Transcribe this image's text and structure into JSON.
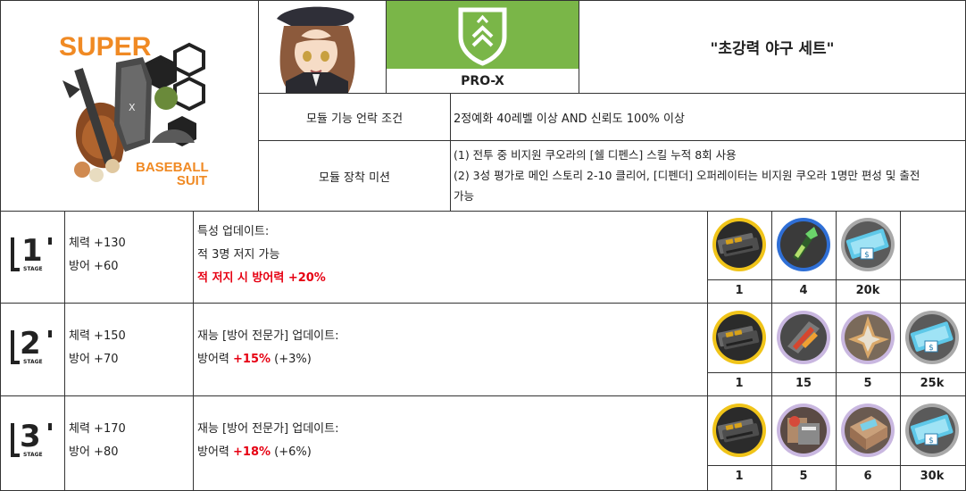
{
  "module": {
    "logo_top_text": "SUPER",
    "logo_bottom_text": "BASEBALL\nSUIT",
    "grade": "PRO-X",
    "name": "\"초강력 야구 세트\"",
    "colors": {
      "grade_bg": "#7ab648",
      "logo_orange": "#f08a24",
      "highlight": "#e60012"
    }
  },
  "unlock": {
    "label": "모듈 기능 언락 조건",
    "value": "2정예화 40레벨 이상 AND 신뢰도 100% 이상"
  },
  "mission": {
    "label": "모듈 장착 미션",
    "line1": "(1) 전투 중 비지원 쿠오라의 [쉘 디펜스] 스킬 누적 8회 사용",
    "line2": "(2) 3성 평가로 메인 스토리 2-10 클리어, [디펜더] 오퍼레이터는 비지원 쿠오라 1명만 편성 및 출전",
    "line3": "가능"
  },
  "stages": [
    {
      "stage_label": "STAGE",
      "number": "1",
      "hp": "체력 +130",
      "def": "방어 +60",
      "desc1": "특성 업데이트:",
      "desc2": "적 3명 저지 가능",
      "desc3": "적 저지 시 방어력 +20%",
      "materials": [
        {
          "icon": "module-data-block-icon",
          "qty": "1"
        },
        {
          "icon": "crystalline-component-icon",
          "qty": "4"
        },
        {
          "icon": "lmd-icon",
          "qty": "20k"
        }
      ]
    },
    {
      "stage_label": "STAGE",
      "number": "2",
      "hp": "체력 +150",
      "def": "방어 +70",
      "desc1": "재능 [방어 전문가] 업데이트:",
      "desc2_prefix": "방어력 ",
      "desc2_value": "+15%",
      "desc2_suffix": " (+3%)",
      "materials": [
        {
          "icon": "module-data-block-icon",
          "qty": "1"
        },
        {
          "icon": "incandescent-alloy-icon",
          "qty": "15"
        },
        {
          "icon": "crystal-electronic-unit-icon",
          "qty": "5"
        },
        {
          "icon": "lmd-icon",
          "qty": "25k"
        }
      ]
    },
    {
      "stage_label": "STAGE",
      "number": "3",
      "hp": "체력 +170",
      "def": "방어 +80",
      "desc1": "재능 [방어 전문가] 업데이트:",
      "desc2_prefix": "방어력 ",
      "desc2_value": "+18%",
      "desc2_suffix": " (+6%)",
      "materials": [
        {
          "icon": "module-data-block-icon",
          "qty": "1"
        },
        {
          "icon": "refined-solvent-icon",
          "qty": "5"
        },
        {
          "icon": "compound-cutting-fluid-icon",
          "qty": "6"
        },
        {
          "icon": "lmd-icon",
          "qty": "30k"
        }
      ]
    }
  ]
}
